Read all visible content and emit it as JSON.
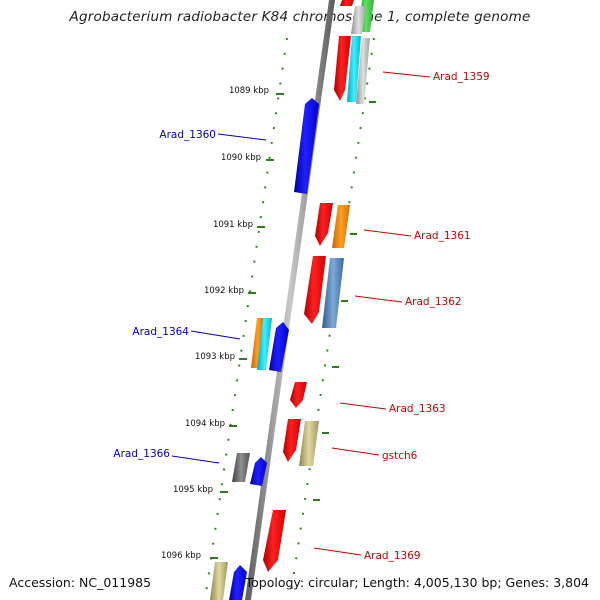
{
  "title": "Agrobacterium radiobacter K84 chromosome 1, complete genome",
  "footer": {
    "accession": "Accession: NC_011985",
    "info": "Topology: circular; Length: 4,005,130 bp; Genes: 3,804"
  },
  "colors": {
    "backbone": "#808080",
    "ticks": "#2e7d1e",
    "label_forward": "#0000cc",
    "label_reverse": "#cc0000"
  },
  "scale_marks": [
    {
      "label": "1089 kbp",
      "kbp": 1089
    },
    {
      "label": "1090 kbp",
      "kbp": 1090
    },
    {
      "label": "1091 kbp",
      "kbp": 1091
    },
    {
      "label": "1092 kbp",
      "kbp": 1092
    },
    {
      "label": "1093 kbp",
      "kbp": 1093
    },
    {
      "label": "1094 kbp",
      "kbp": 1094
    },
    {
      "label": "1095 kbp",
      "kbp": 1095
    },
    {
      "label": "1096 kbp",
      "kbp": 1096
    }
  ],
  "gene_labels": [
    {
      "name": "Arad_1359",
      "strand": "reverse"
    },
    {
      "name": "Arad_1360",
      "strand": "forward"
    },
    {
      "name": "Arad_1361",
      "strand": "reverse"
    },
    {
      "name": "Arad_1362",
      "strand": "reverse"
    },
    {
      "name": "Arad_1364",
      "strand": "forward"
    },
    {
      "name": "Arad_1363",
      "strand": "reverse"
    },
    {
      "name": "Arad_1366",
      "strand": "forward"
    },
    {
      "name": "gstch6",
      "strand": "reverse"
    },
    {
      "name": "Arad_1369",
      "strand": "reverse"
    }
  ]
}
